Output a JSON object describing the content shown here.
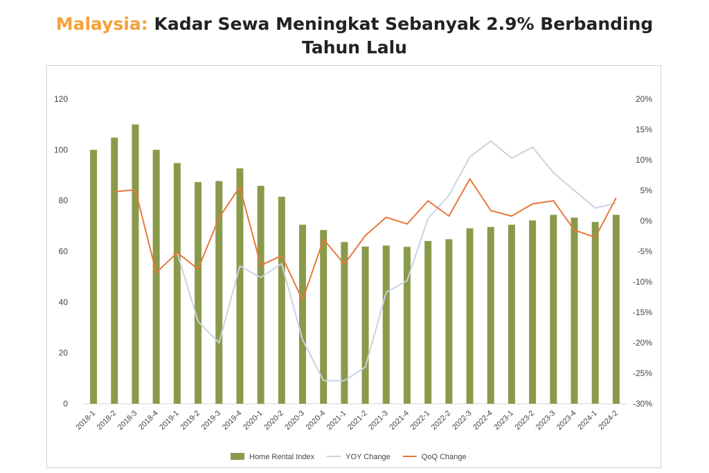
{
  "title": {
    "accent": "Malaysia:",
    "rest": " Kadar Sewa Meningkat Sebanyak 2.9% Berbanding",
    "line2": "Tahun Lalu"
  },
  "colors": {
    "bar": "#8A9A4B",
    "yoy": "#C9D3DF",
    "qoq": "#E8773A",
    "accent": "#F5A13A"
  },
  "chart_data": {
    "type": "bar",
    "title": "Malaysia: Kadar Sewa Meningkat Sebanyak 2.9% Berbanding Tahun Lalu",
    "categories": [
      "2018-1",
      "2018-2",
      "2018-3",
      "2018-4",
      "2019-1",
      "2019-2",
      "2019-3",
      "2019-4",
      "2020-1",
      "2020-2",
      "2020-3",
      "2020-4",
      "2021-1",
      "2021-2",
      "2021-3",
      "2021-4",
      "2022-1",
      "2022-2",
      "2022-3",
      "2022-4",
      "2023-1",
      "2023-2",
      "2023-3",
      "2023-4",
      "2024-1",
      "2024-2"
    ],
    "y_left": {
      "min": 0,
      "max": 120,
      "ticks": [
        "0",
        "20",
        "40",
        "60",
        "80",
        "100",
        "120"
      ]
    },
    "y_right": {
      "min": -30,
      "max": 20,
      "ticks": [
        "-30%",
        "-25%",
        "-20%",
        "-15%",
        "-10%",
        "-5%",
        "0%",
        "5%",
        "10%",
        "15%",
        "20%"
      ]
    },
    "grid": false,
    "legend_position": "bottom",
    "series": [
      {
        "name": "Home Rental Index",
        "type": "bar",
        "axis": "left",
        "values": [
          100,
          104.8,
          110,
          100,
          94.8,
          87.3,
          87.7,
          92.7,
          85.8,
          81.5,
          70.5,
          68.4,
          63.7,
          61.9,
          62.3,
          61.8,
          64.1,
          64.8,
          69.1,
          69.6,
          70.5,
          72.2,
          74.4,
          73.3,
          71.6,
          74.4
        ]
      },
      {
        "name": "YOY Change",
        "type": "line",
        "axis": "right",
        "values": [
          null,
          null,
          null,
          null,
          -5.2,
          -16.5,
          -20,
          -7.4,
          -9.3,
          -7,
          -19.5,
          -26.2,
          -26.2,
          -24,
          -11.7,
          -9.8,
          0.4,
          4.2,
          10.5,
          13.1,
          10.3,
          12.1,
          7.9,
          5,
          2.1,
          2.9
        ]
      },
      {
        "name": "QoQ Change",
        "type": "line",
        "axis": "right",
        "values": [
          null,
          4.8,
          5.1,
          -8.5,
          -5.2,
          -7.9,
          0.5,
          5.6,
          -7.3,
          -5.7,
          -13,
          -3,
          -7.1,
          -2.4,
          0.6,
          -0.5,
          3.3,
          0.8,
          6.9,
          1.7,
          0.8,
          2.8,
          3.3,
          -1.5,
          -2.7,
          3.8
        ]
      }
    ]
  }
}
